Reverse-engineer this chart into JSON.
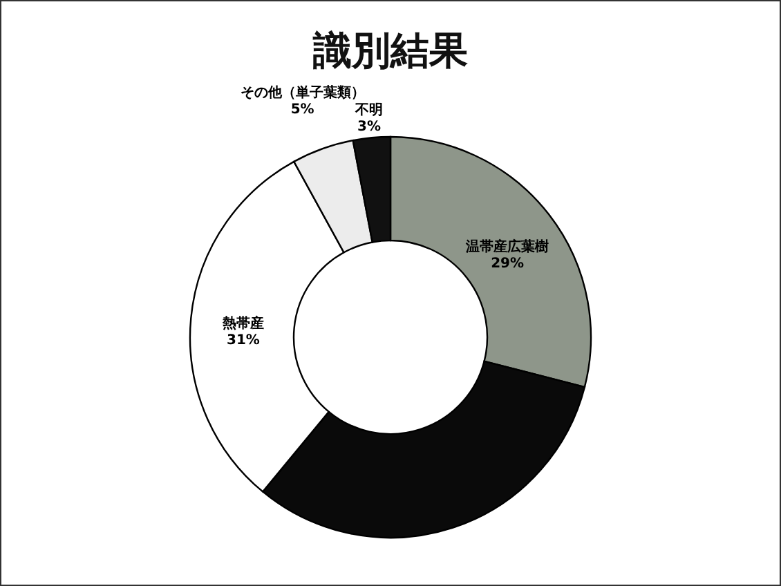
{
  "chart_data": {
    "type": "donut",
    "title": "識別結果",
    "categories": [
      "温帯産広葉樹",
      null,
      "熱帯産",
      "その他（単子葉類）",
      "不明"
    ],
    "values": [
      29,
      32,
      31,
      5,
      3
    ],
    "value_labels": [
      "29%",
      null,
      "31%",
      "5%",
      "3%"
    ],
    "colors": [
      "#8e968a",
      "#0a0a0a",
      "#ffffff",
      "#ececec",
      "#111111"
    ],
    "legend": false
  }
}
